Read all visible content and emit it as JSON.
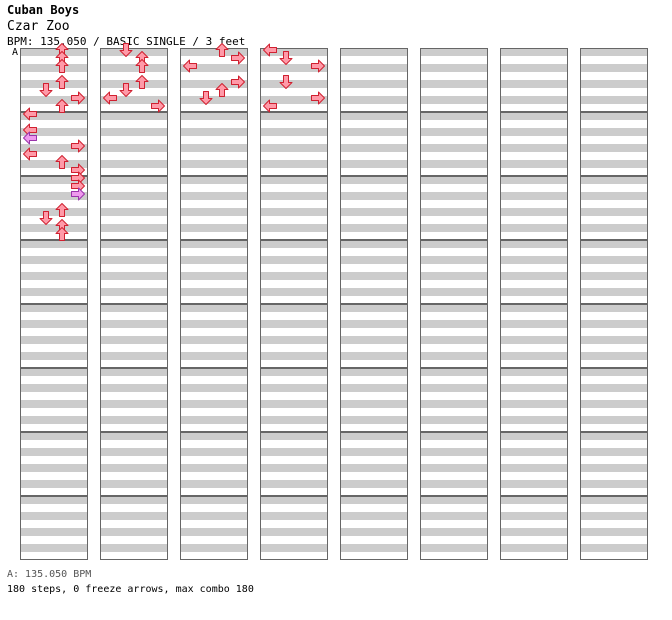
{
  "header": {
    "title": "Cuban Boys",
    "subtitle": "Czar Zoo",
    "info": "BPM: 135.050 / BASIC SINGLE / 3 feet"
  },
  "bpm_marker": "A",
  "footer": {
    "bpm_line": "A: 135.050 BPM",
    "stats": "180 steps, 0 freeze arrows, max combo 180"
  },
  "colors": {
    "stripe_gray": "#cccccc",
    "quarter_note": "#ff9aa8",
    "eighth_note": "#ee99ee",
    "sixteenth_note": "#66aaff",
    "marker_line": "#6da3d6"
  },
  "chart_data": {
    "type": "step-chart",
    "columns": 8,
    "measures_per_column": 8,
    "lanes": [
      "left",
      "down",
      "up",
      "right"
    ],
    "notes_per_measure_grid": 16,
    "note_types": {
      "r": "quarter",
      "p": "eighth",
      "b": "sixteenth"
    },
    "notes": [
      [
        1,
        0,
        0,
        2,
        "r"
      ],
      [
        1,
        0,
        2,
        2,
        "r"
      ],
      [
        1,
        0,
        4,
        2,
        "r"
      ],
      [
        1,
        0,
        8,
        2,
        "r"
      ],
      [
        1,
        0,
        10,
        1,
        "r"
      ],
      [
        1,
        0,
        12,
        3,
        "r"
      ],
      [
        1,
        0,
        14,
        2,
        "r"
      ],
      [
        1,
        1,
        0,
        0,
        "r"
      ],
      [
        1,
        1,
        4,
        0,
        "r"
      ],
      [
        1,
        1,
        6,
        0,
        "p"
      ],
      [
        1,
        1,
        8,
        3,
        "r"
      ],
      [
        1,
        1,
        10,
        0,
        "r"
      ],
      [
        1,
        1,
        12,
        2,
        "r"
      ],
      [
        1,
        1,
        14,
        3,
        "r"
      ],
      [
        1,
        2,
        0,
        3,
        "r"
      ],
      [
        1,
        2,
        2,
        3,
        "r"
      ],
      [
        1,
        2,
        4,
        3,
        "p"
      ],
      [
        1,
        2,
        8,
        2,
        "r"
      ],
      [
        1,
        2,
        10,
        1,
        "r"
      ],
      [
        1,
        2,
        12,
        2,
        "r"
      ],
      [
        1,
        2,
        14,
        2,
        "r"
      ],
      [
        2,
        0,
        0,
        1,
        "r"
      ],
      [
        2,
        0,
        2,
        2,
        "r"
      ],
      [
        2,
        0,
        4,
        2,
        "r"
      ],
      [
        2,
        0,
        8,
        2,
        "r"
      ],
      [
        2,
        0,
        10,
        1,
        "r"
      ],
      [
        2,
        0,
        12,
        0,
        "r"
      ],
      [
        2,
        0,
        14,
        3,
        "r"
      ],
      [
        3,
        0,
        0,
        2,
        "r"
      ],
      [
        3,
        0,
        2,
        3,
        "r"
      ],
      [
        3,
        0,
        4,
        0,
        "r"
      ],
      [
        3,
        0,
        8,
        3,
        "r"
      ],
      [
        3,
        0,
        10,
        2,
        "r"
      ],
      [
        3,
        0,
        12,
        1,
        "r"
      ],
      [
        4,
        0,
        0,
        0,
        "r"
      ],
      [
        4,
        0,
        2,
        1,
        "r"
      ],
      [
        4,
        0,
        4,
        3,
        "r"
      ],
      [
        4,
        0,
        8,
        1,
        "r"
      ],
      [
        4,
        0,
        12,
        3,
        "r"
      ],
      [
        4,
        0,
        14,
        0,
        "r"
      ]
    ]
  }
}
